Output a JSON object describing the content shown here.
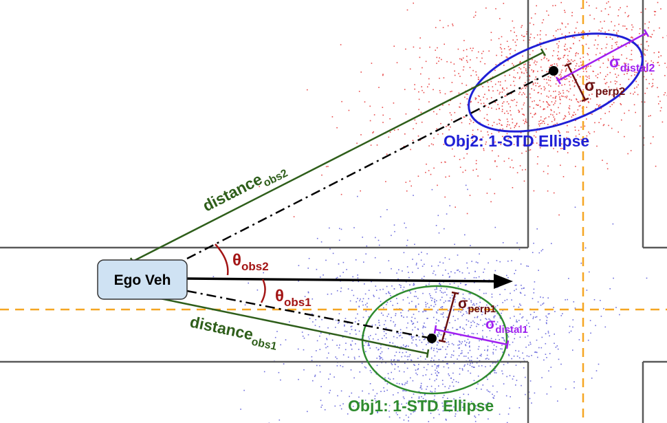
{
  "ego": {
    "label": "Ego Veh",
    "fill": "#cfe2f3",
    "stroke": "#333333"
  },
  "obj1": {
    "ellipse_label": "Obj1: 1-STD Ellipse",
    "color": "#2e8b2e",
    "points_color": "#6b6bdc",
    "distance_main": "distance",
    "distance_sub": "obs1",
    "theta_main": "θ",
    "theta_sub": "obs1",
    "sigma_perp_main": "σ",
    "sigma_perp_sub": "perp1",
    "sigma_distal_main": "σ",
    "sigma_distal_sub": "distal1"
  },
  "obj2": {
    "ellipse_label": "Obj2: 1-STD Ellipse",
    "color": "#1f1fd6",
    "points_color": "#e84a4a",
    "distance_main": "distance",
    "distance_sub": "obs2",
    "theta_main": "θ",
    "theta_sub": "obs2",
    "sigma_perp_main": "σ",
    "sigma_perp_sub": "perp2",
    "sigma_distal_main": "σ",
    "sigma_distal_sub": "distal2"
  },
  "colors": {
    "distance": "#2e5e1a",
    "theta": "#a31515",
    "sigma_perp": "#6b1010",
    "sigma_distal": "#a020f0",
    "road": "#595959",
    "lane": "#f5a623"
  }
}
